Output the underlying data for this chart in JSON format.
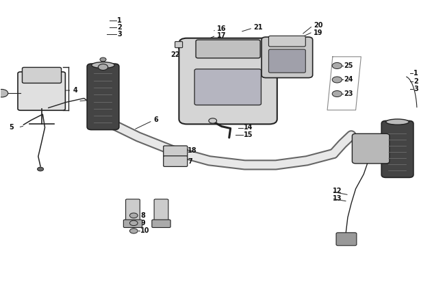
{
  "bg_color": "#ffffff",
  "fig_width": 6.5,
  "fig_height": 4.12,
  "dpi": 100,
  "line_color": "#222222",
  "label_fontsize": 7.0,
  "part_gray": "#cccccc",
  "part_dark": "#555555",
  "part_mid": "#aaaaaa"
}
